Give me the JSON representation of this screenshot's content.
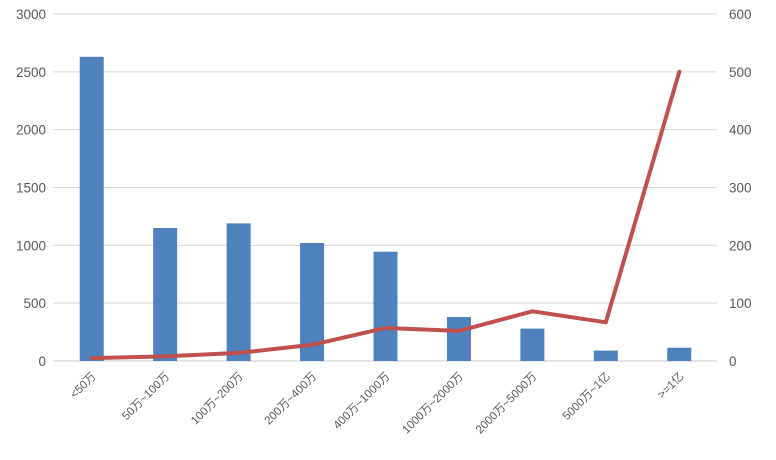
{
  "chart_data": {
    "type": "combo",
    "title": "",
    "legend": "none",
    "grid": true,
    "categories": [
      "<50万",
      "50万~100万",
      "100万~200万",
      "200万~400万",
      "400万~1000万",
      "1000万~2000万",
      "2000万~5000万",
      "5000万~1亿",
      ">=1亿"
    ],
    "series": [
      {
        "id": "bars",
        "type": "bar",
        "axis": "left",
        "color": "#4F81BD",
        "values": [
          2630,
          1150,
          1190,
          1020,
          945,
          380,
          280,
          90,
          115
        ]
      },
      {
        "id": "line",
        "type": "line",
        "axis": "right",
        "color": "#C0504D",
        "values": [
          5,
          8,
          14,
          28,
          57,
          52,
          86,
          67,
          500
        ]
      }
    ],
    "left_axis": {
      "min": 0,
      "max": 3000,
      "step": 500,
      "tick_labels": [
        "0",
        "500",
        "1000",
        "1500",
        "2000",
        "2500",
        "3000"
      ]
    },
    "right_axis": {
      "min": 0,
      "max": 600,
      "step": 100,
      "tick_labels": [
        "0",
        "100",
        "200",
        "300",
        "400",
        "500",
        "600"
      ]
    },
    "styles": {
      "grid_color": "#D9D9D9",
      "axis_line_color": "#C9C9C9",
      "text_color": "#595959",
      "background": "#FFFFFF"
    }
  }
}
